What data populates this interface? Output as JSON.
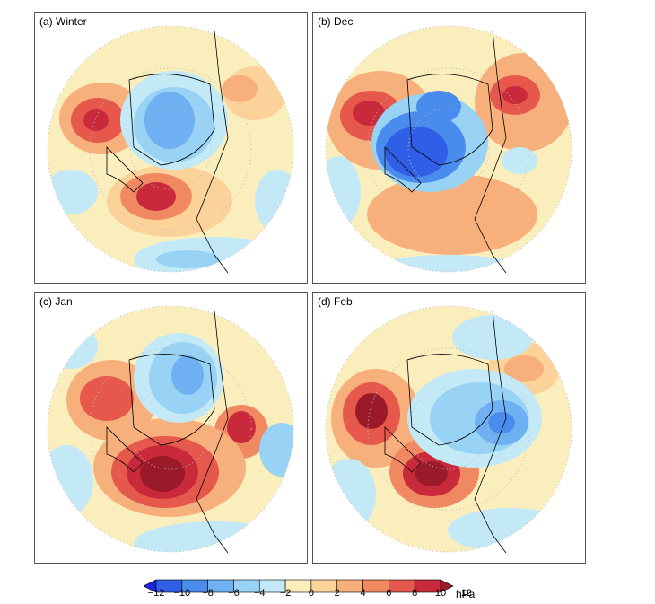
{
  "panels": [
    {
      "id": "a",
      "label": "(a)  Winter"
    },
    {
      "id": "b",
      "label": "(b)  Dec"
    },
    {
      "id": "c",
      "label": "(c)  Jan"
    },
    {
      "id": "d",
      "label": "(d)  Feb"
    }
  ],
  "colorbar": {
    "ticks": [
      "−12",
      "−10",
      "−8",
      "−6",
      "−4",
      "−2",
      "0",
      "2",
      "4",
      "6",
      "8",
      "10",
      "12"
    ],
    "unit": "hPa",
    "colors": [
      "#1f24e0",
      "#2f5fe6",
      "#4a8bee",
      "#6fb0f2",
      "#98d2f5",
      "#c3e9f7",
      "#fbeebd",
      "#fbd29a",
      "#f7b07b",
      "#f08862",
      "#e5584b",
      "#c92a3b",
      "#9b1a2a"
    ]
  },
  "map_legend": {
    "positive_color": "#e5584b",
    "negative_color": "#2f5fe6",
    "neutral_color": "#fbeebd"
  }
}
